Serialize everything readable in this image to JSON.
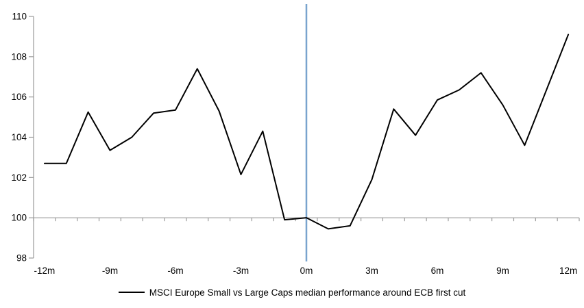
{
  "chart_data": {
    "type": "line",
    "title": "",
    "x": [
      -12,
      -11,
      -10,
      -9,
      -8,
      -7,
      -6,
      -5,
      -4,
      -3,
      -2,
      -1,
      0,
      1,
      2,
      3,
      4,
      5,
      6,
      7,
      8,
      9,
      10,
      11,
      12
    ],
    "x_unit": "months around ECB first cut",
    "series": [
      {
        "name": "MSCI Europe Small vs Large Caps median performance around ECB first cut",
        "color": "#000000",
        "values": [
          102.7,
          102.7,
          105.25,
          103.35,
          104.0,
          105.2,
          105.35,
          107.4,
          105.3,
          102.15,
          104.3,
          99.9,
          100.0,
          99.45,
          99.6,
          101.9,
          105.4,
          104.1,
          105.85,
          106.35,
          107.2,
          105.6,
          103.6,
          106.35,
          109.1
        ]
      }
    ],
    "x_tick_labels": [
      "-12m",
      "-9m",
      "-6m",
      "-3m",
      "0m",
      "3m",
      "6m",
      "9m",
      "12m"
    ],
    "x_label_step": 3,
    "y_ticks": [
      98,
      100,
      102,
      104,
      106,
      108,
      110
    ],
    "ylim": [
      98,
      110
    ],
    "axis_cross_y": 100,
    "axis_color": "#999999",
    "text_color": "#000000",
    "event_line": {
      "x": 0,
      "color": "#79A3CE"
    },
    "grid": "off",
    "legend": {
      "label": "MSCI Europe Small vs Large Caps median performance around ECB first cut",
      "position": "bottom-center"
    }
  }
}
